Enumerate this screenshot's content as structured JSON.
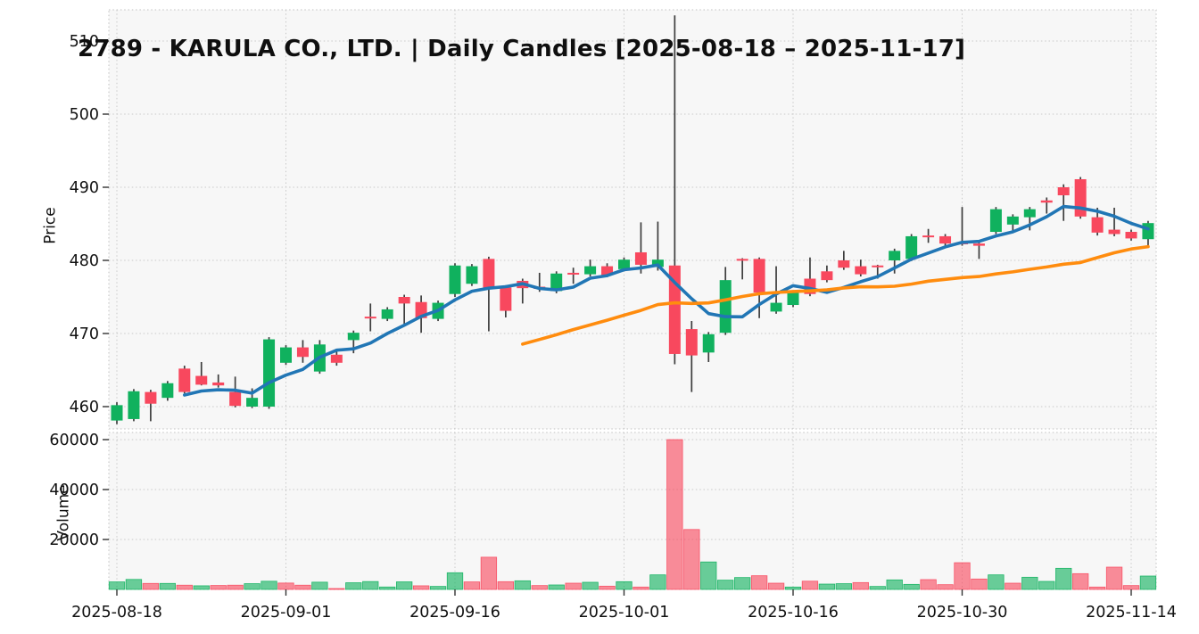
{
  "title": "2789 - KARULA CO., LTD. | Daily Candles [2025-08-18 – 2025-11-17]",
  "price_axis": {
    "label": "Price",
    "ticks": [
      460,
      470,
      480,
      490,
      500,
      510
    ]
  },
  "volume_axis": {
    "label": "Volume",
    "ticks": [
      20000,
      40000,
      60000
    ]
  },
  "x_axis": {
    "tick_labels": [
      "2025-08-18",
      "2025-09-01",
      "2025-09-16",
      "2025-10-01",
      "2025-10-16",
      "2025-10-30",
      "2025-11-14"
    ],
    "tick_indices": [
      0,
      10,
      20,
      30,
      40,
      50,
      60
    ]
  },
  "colors": {
    "up": "#10b15e",
    "down": "#f8485e",
    "wick": "#3d3d3d",
    "ma_fast": "#2176b5",
    "ma_slow": "#ff8c0e",
    "panel_bg": "#f7f7f7",
    "grid": "#c9c9c9",
    "border": "#c0c0c0",
    "text": "#111111"
  },
  "chart_data": {
    "type": "candlestick+volume",
    "title": "2789 - KARULA CO., LTD. | Daily Candles [2025-08-18 – 2025-11-17]",
    "ylabel": "Price",
    "ylabel2": "Volume",
    "price_range": [
      457.0,
      514.3
    ],
    "volume_range": [
      0,
      62900
    ],
    "grid": "dotted",
    "overlays": [
      {
        "name": "MA5",
        "window": 5,
        "color": "#2176b5"
      },
      {
        "name": "MA25",
        "window": 25,
        "color": "#ff8c0e"
      }
    ],
    "dates": [
      "2025-08-18",
      "2025-08-19",
      "2025-08-20",
      "2025-08-21",
      "2025-08-22",
      "2025-08-25",
      "2025-08-26",
      "2025-08-27",
      "2025-08-28",
      "2025-08-29",
      "2025-09-01",
      "2025-09-02",
      "2025-09-03",
      "2025-09-04",
      "2025-09-05",
      "2025-09-08",
      "2025-09-09",
      "2025-09-10",
      "2025-09-11",
      "2025-09-12",
      "2025-09-16",
      "2025-09-17",
      "2025-09-18",
      "2025-09-19",
      "2025-09-22",
      "2025-09-24",
      "2025-09-25",
      "2025-09-26",
      "2025-09-29",
      "2025-09-30",
      "2025-10-01",
      "2025-10-02",
      "2025-10-03",
      "2025-10-06",
      "2025-10-07",
      "2025-10-08",
      "2025-10-09",
      "2025-10-10",
      "2025-10-14",
      "2025-10-15",
      "2025-10-16",
      "2025-10-17",
      "2025-10-20",
      "2025-10-21",
      "2025-10-22",
      "2025-10-23",
      "2025-10-24",
      "2025-10-27",
      "2025-10-28",
      "2025-10-29",
      "2025-10-30",
      "2025-10-31",
      "2025-11-04",
      "2025-11-05",
      "2025-11-06",
      "2025-11-07",
      "2025-11-10",
      "2025-11-11",
      "2025-11-12",
      "2025-11-13",
      "2025-11-14",
      "2025-11-17"
    ],
    "open": [
      458.1,
      458.3,
      462.0,
      461.2,
      465.2,
      464.2,
      463.3,
      462.0,
      460.0,
      460.0,
      466.0,
      468.1,
      464.8,
      467.1,
      469.1,
      472.3,
      472.0,
      475.0,
      474.3,
      472.0,
      475.4,
      476.8,
      480.2,
      476.3,
      477.2,
      476.4,
      475.8,
      478.3,
      478.1,
      479.2,
      478.8,
      481.1,
      479.1,
      479.3,
      470.6,
      467.4,
      470.1,
      480.2,
      480.2,
      473.0,
      473.9,
      477.5,
      478.5,
      480.0,
      479.2,
      479.3,
      480.0,
      480.2,
      483.4,
      483.3,
      482.5,
      482.3,
      483.9,
      484.9,
      485.9,
      488.2,
      490.0,
      491.1,
      485.9,
      484.2,
      483.9,
      482.9
    ],
    "high": [
      460.6,
      462.4,
      462.3,
      463.5,
      465.6,
      466.1,
      464.4,
      464.1,
      462.5,
      469.5,
      468.4,
      469.1,
      469.1,
      467.5,
      470.4,
      474.1,
      473.6,
      475.3,
      475.2,
      474.5,
      479.6,
      479.5,
      480.5,
      476.6,
      477.5,
      478.3,
      478.5,
      479.0,
      480.1,
      479.6,
      480.4,
      485.2,
      485.3,
      513.5,
      471.7,
      470.2,
      479.1,
      480.3,
      480.4,
      479.2,
      475.9,
      480.4,
      479.3,
      481.3,
      480.1,
      479.4,
      481.6,
      483.6,
      484.3,
      483.6,
      487.3,
      482.5,
      487.3,
      486.3,
      487.3,
      488.6,
      490.4,
      491.4,
      487.2,
      487.2,
      484.2,
      485.4
    ],
    "low": [
      457.6,
      458.0,
      458.0,
      460.8,
      461.8,
      462.9,
      462.6,
      459.9,
      459.8,
      459.7,
      465.7,
      466.0,
      464.5,
      465.6,
      467.3,
      470.3,
      471.7,
      471.3,
      470.1,
      471.7,
      475.0,
      476.5,
      470.3,
      472.2,
      474.1,
      475.7,
      475.5,
      476.8,
      477.8,
      477.7,
      478.5,
      478.2,
      478.6,
      465.8,
      462.0,
      466.1,
      469.8,
      477.4,
      472.1,
      472.7,
      473.6,
      475.1,
      477.0,
      478.7,
      477.8,
      477.5,
      478.2,
      479.9,
      482.4,
      482.0,
      482.0,
      480.2,
      483.6,
      483.9,
      484.1,
      486.4,
      485.4,
      485.7,
      483.4,
      483.3,
      482.7,
      482.0
    ],
    "close": [
      460.2,
      462.1,
      460.4,
      463.2,
      462.0,
      463.0,
      462.9,
      460.1,
      461.2,
      469.2,
      468.1,
      466.8,
      468.5,
      466.0,
      470.1,
      472.1,
      473.3,
      474.1,
      472.1,
      474.2,
      479.3,
      479.2,
      476.2,
      473.1,
      476.2,
      476.1,
      478.2,
      478.1,
      479.2,
      478.0,
      480.1,
      479.4,
      480.1,
      467.2,
      467.0,
      469.9,
      477.3,
      480.0,
      475.6,
      474.2,
      475.6,
      475.4,
      477.3,
      479.0,
      478.1,
      479.1,
      481.3,
      483.3,
      483.2,
      482.3,
      482.2,
      482.0,
      487.0,
      486.0,
      487.0,
      487.9,
      488.9,
      486.0,
      483.8,
      483.6,
      483.0,
      485.1
    ],
    "volume": [
      3000,
      4000,
      2400,
      2400,
      1700,
      1450,
      1580,
      1700,
      2300,
      3270,
      2550,
      1700,
      2900,
      350,
      2670,
      3150,
      970,
      3030,
      1450,
      1200,
      6670,
      3000,
      12900,
      3100,
      3450,
      1550,
      1790,
      2500,
      2860,
      1300,
      3100,
      950,
      5830,
      60000,
      24000,
      11000,
      3700,
      4760,
      5480,
      2500,
      950,
      3300,
      2140,
      2300,
      2740,
      1190,
      3810,
      2020,
      3930,
      1900,
      10700,
      4170,
      5830,
      2500,
      4880,
      3210,
      8450,
      6310,
      950,
      8930,
      1550,
      5360
    ]
  }
}
